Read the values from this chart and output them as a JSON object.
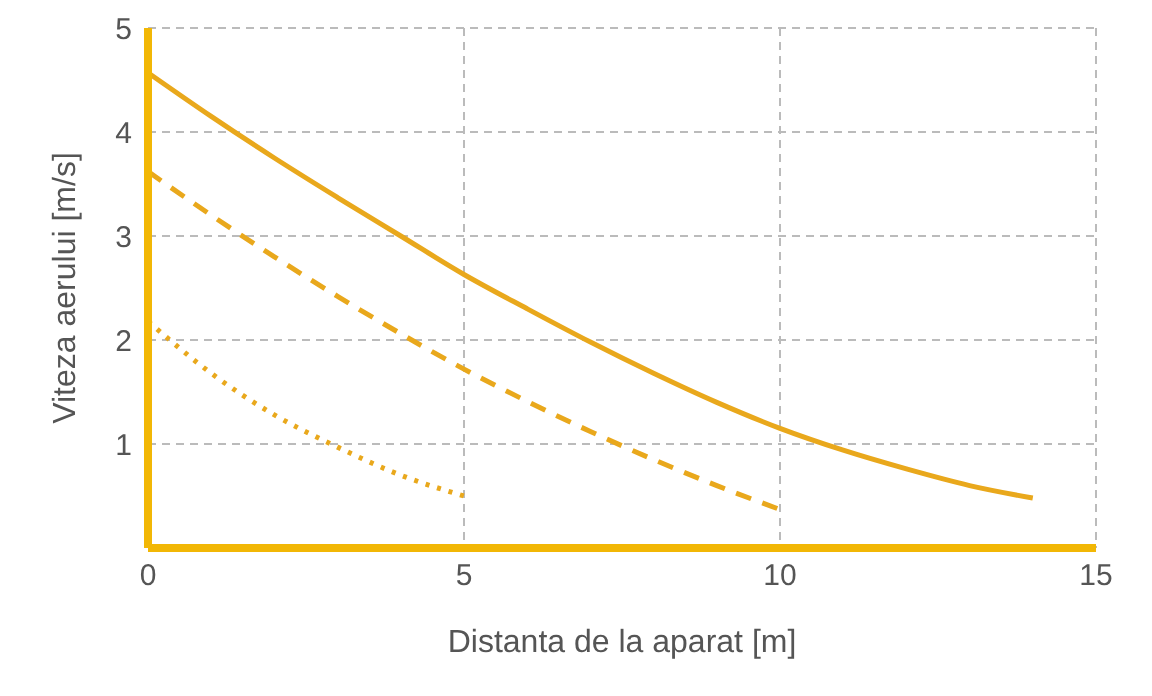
{
  "chart_data": {
    "type": "line",
    "xlabel": "Distanta de la aparat  [m]",
    "ylabel": "Viteza aerului  [m/s]",
    "xlim": [
      0,
      15
    ],
    "xticks": [
      0,
      5,
      10,
      15
    ],
    "ylim": [
      0,
      5
    ],
    "yticks": [
      {
        "value": 0,
        "label": null
      },
      1,
      2,
      3,
      4,
      5
    ],
    "grid": true,
    "marker": "none",
    "series": [
      {
        "color": "#e9a81c",
        "line_style": "solid",
        "x": [
          0,
          1,
          2,
          3,
          4,
          5,
          6,
          7,
          8,
          9,
          10,
          11,
          12,
          13,
          14
        ],
        "values": [
          4.57,
          4.15,
          3.75,
          3.37,
          3.0,
          2.63,
          2.3,
          1.98,
          1.68,
          1.4,
          1.15,
          0.94,
          0.76,
          0.6,
          0.48
        ]
      },
      {
        "color": "#e9a81c",
        "line_style": "dashed",
        "x": [
          0,
          1,
          2,
          3,
          4,
          5,
          6,
          7,
          8,
          9,
          10
        ],
        "values": [
          3.62,
          3.2,
          2.8,
          2.42,
          2.06,
          1.72,
          1.41,
          1.12,
          0.85,
          0.6,
          0.37
        ]
      },
      {
        "color": "#e9a81c",
        "line_style": "dotted",
        "x": [
          0,
          1,
          2,
          3,
          4,
          5
        ],
        "values": [
          2.18,
          1.68,
          1.28,
          0.97,
          0.7,
          0.5
        ]
      }
    ]
  }
}
